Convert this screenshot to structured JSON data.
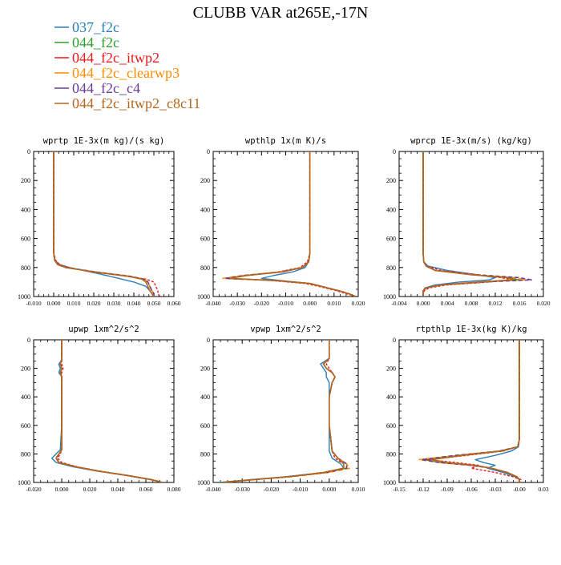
{
  "title": "CLUBB VAR at265E,-17N",
  "legend": [
    {
      "label": "037_f2c",
      "color": "#2a7fb8"
    },
    {
      "label": "044_f2c",
      "color": "#2ca02c"
    },
    {
      "label": "044_f2c_itwp2",
      "color": "#e41a1c"
    },
    {
      "label": "044_f2c_clearwp3",
      "color": "#ff8c00"
    },
    {
      "label": "044_f2c_c4",
      "color": "#6a3d9a"
    },
    {
      "label": "044_f2c_itwp2_c8c11",
      "color": "#b5651d"
    }
  ],
  "chart_data": [
    {
      "type": "line",
      "title": "wprtp  1E-3x(m kg)/(s kg)",
      "xlim": [
        -0.01,
        0.06
      ],
      "xticks": [
        "-0.010",
        "0.000",
        "0.010",
        "0.020",
        "0.030",
        "0.040",
        "0.050",
        "0.060"
      ],
      "ylim": [
        1000,
        0
      ],
      "yticks": [
        "0",
        "200",
        "400",
        "600",
        "800",
        "1000"
      ],
      "y": [
        0,
        100,
        300,
        500,
        700,
        750,
        780,
        800,
        830,
        860,
        880,
        900,
        930,
        960,
        980,
        1000
      ],
      "series": [
        {
          "name": "037_f2c",
          "values": [
            0,
            0,
            0,
            0,
            0,
            0.0005,
            0.003,
            0.008,
            0.018,
            0.028,
            0.034,
            0.04,
            0.046,
            0.048,
            0.049,
            0.05
          ]
        },
        {
          "name": "044_f2c",
          "values": [
            0,
            0,
            0,
            0,
            0,
            0.0005,
            0.002,
            0.006,
            0.02,
            0.038,
            0.045,
            0.047,
            0.048,
            0.049,
            0.05,
            0.05
          ]
        },
        {
          "name": "044_f2c_itwp2",
          "values": [
            0,
            0,
            0,
            0,
            0,
            0.001,
            0.003,
            0.007,
            0.019,
            0.036,
            0.046,
            0.05,
            0.051,
            0.052,
            0.052,
            0.053
          ]
        },
        {
          "name": "044_f2c_clearwp3",
          "values": [
            0,
            0,
            0,
            0,
            0,
            0.0005,
            0.002,
            0.006,
            0.02,
            0.037,
            0.045,
            0.047,
            0.048,
            0.049,
            0.05,
            0.05
          ]
        },
        {
          "name": "044_f2c_c4",
          "values": [
            0,
            0,
            0,
            0,
            0,
            0.0005,
            0.002,
            0.006,
            0.021,
            0.038,
            0.045,
            0.047,
            0.048,
            0.049,
            0.05,
            0.05
          ]
        },
        {
          "name": "044_f2c_itwp2_c8c11",
          "values": [
            0,
            0,
            0,
            0,
            0,
            0.0005,
            0.002,
            0.006,
            0.02,
            0.037,
            0.044,
            0.046,
            0.047,
            0.048,
            0.049,
            0.05
          ]
        }
      ]
    },
    {
      "type": "line",
      "title": "wpthlp  1x(m K)/s",
      "xlim": [
        -0.04,
        0.02
      ],
      "xticks": [
        "-0.040",
        "-0.030",
        "-0.020",
        "-0.010",
        "0.000",
        "0.010",
        "0.020"
      ],
      "ylim": [
        1000,
        0
      ],
      "yticks": [
        "0",
        "200",
        "400",
        "600",
        "800",
        "1000"
      ],
      "y": [
        0,
        100,
        300,
        500,
        700,
        760,
        800,
        830,
        855,
        875,
        890,
        910,
        935,
        960,
        980,
        1000
      ],
      "series": [
        {
          "name": "037_f2c",
          "values": [
            0,
            0,
            0,
            0,
            0,
            -0.0005,
            -0.002,
            -0.007,
            -0.015,
            -0.02,
            -0.012,
            0.0,
            0.006,
            0.012,
            0.016,
            0.019
          ]
        },
        {
          "name": "044_f2c",
          "values": [
            0,
            0,
            0,
            0,
            0,
            -0.0005,
            -0.003,
            -0.012,
            -0.026,
            -0.034,
            -0.014,
            0.0,
            0.006,
            0.012,
            0.016,
            0.019
          ]
        },
        {
          "name": "044_f2c_itwp2",
          "values": [
            0,
            0,
            0,
            0,
            0,
            -0.001,
            -0.004,
            -0.013,
            -0.027,
            -0.034,
            -0.016,
            -0.002,
            0.005,
            0.011,
            0.015,
            0.019
          ]
        },
        {
          "name": "044_f2c_clearwp3",
          "values": [
            0,
            0,
            0,
            0,
            0,
            -0.0005,
            -0.003,
            -0.012,
            -0.028,
            -0.036,
            -0.015,
            0.0,
            0.006,
            0.012,
            0.016,
            0.019
          ]
        },
        {
          "name": "044_f2c_c4",
          "values": [
            0,
            0,
            0,
            0,
            0,
            -0.0005,
            -0.003,
            -0.012,
            -0.027,
            -0.035,
            -0.014,
            0.0,
            0.006,
            0.012,
            0.016,
            0.019
          ]
        },
        {
          "name": "044_f2c_itwp2_c8c11",
          "values": [
            0,
            0,
            0,
            0,
            0,
            -0.0005,
            -0.003,
            -0.011,
            -0.026,
            -0.033,
            -0.014,
            0.0,
            0.006,
            0.012,
            0.016,
            0.019
          ]
        }
      ]
    },
    {
      "type": "line",
      "title": "wprcp  1E-3x(m/s) (kg/kg)",
      "xlim": [
        -0.004,
        0.02
      ],
      "xticks": [
        "-0.004",
        "0.000",
        "0.004",
        "0.008",
        "0.012",
        "0.016",
        "0.020"
      ],
      "ylim": [
        1000,
        0
      ],
      "yticks": [
        "0",
        "200",
        "400",
        "600",
        "800",
        "1000"
      ],
      "y": [
        0,
        100,
        300,
        500,
        700,
        760,
        790,
        820,
        850,
        870,
        885,
        900,
        920,
        940,
        960,
        980,
        1000
      ],
      "series": [
        {
          "name": "037_f2c",
          "values": [
            0,
            0,
            0,
            0,
            0,
            0.0001,
            0.0008,
            0.004,
            0.009,
            0.012,
            0.011,
            0.006,
            0.002,
            0.0003,
            0,
            0,
            0
          ]
        },
        {
          "name": "044_f2c",
          "values": [
            0,
            0,
            0,
            0,
            0,
            0.0001,
            0.0005,
            0.002,
            0.008,
            0.014,
            0.016,
            0.01,
            0.003,
            0.0005,
            0,
            0,
            0
          ]
        },
        {
          "name": "044_f2c_itwp2",
          "values": [
            0,
            0,
            0,
            0,
            0,
            0.0001,
            0.0006,
            0.003,
            0.009,
            0.013,
            0.015,
            0.011,
            0.004,
            0.001,
            0.0002,
            0,
            0
          ]
        },
        {
          "name": "044_f2c_clearwp3",
          "values": [
            0,
            0,
            0,
            0,
            0,
            0.0001,
            0.0005,
            0.002,
            0.009,
            0.015,
            0.017,
            0.01,
            0.003,
            0.0005,
            0,
            0,
            0
          ]
        },
        {
          "name": "044_f2c_c4",
          "values": [
            0,
            0,
            0,
            0,
            0,
            0.0001,
            0.0005,
            0.002,
            0.009,
            0.016,
            0.018,
            0.01,
            0.003,
            0.0005,
            0,
            0,
            0
          ]
        },
        {
          "name": "044_f2c_itwp2_c8c11",
          "values": [
            0,
            0,
            0,
            0,
            0,
            0.0001,
            0.0005,
            0.002,
            0.008,
            0.014,
            0.015,
            0.009,
            0.003,
            0.0005,
            0,
            0,
            0
          ]
        }
      ]
    },
    {
      "type": "line",
      "title": "upwp  1xm^2/s^2",
      "xlim": [
        -0.02,
        0.08
      ],
      "xticks": [
        "-0.020",
        "0.000",
        "0.020",
        "0.040",
        "0.060",
        "0.080"
      ],
      "ylim": [
        1000,
        0
      ],
      "yticks": [
        "0",
        "200",
        "400",
        "600",
        "800",
        "1000"
      ],
      "y": [
        0,
        140,
        170,
        200,
        230,
        260,
        400,
        600,
        770,
        800,
        830,
        860,
        890,
        920,
        950,
        980,
        1000
      ],
      "series": [
        {
          "name": "037_f2c",
          "values": [
            0,
            0,
            -0.002,
            -0.001,
            -0.002,
            0,
            0,
            0,
            -0.001,
            -0.004,
            -0.007,
            -0.004,
            0.008,
            0.025,
            0.045,
            0.063,
            0.072
          ]
        },
        {
          "name": "044_f2c",
          "values": [
            0,
            0,
            -0.001,
            0.0,
            -0.001,
            0,
            0,
            0,
            0,
            -0.002,
            -0.004,
            -0.002,
            0.01,
            0.026,
            0.046,
            0.064,
            0.072
          ]
        },
        {
          "name": "044_f2c_itwp2",
          "values": [
            0,
            0,
            0.0,
            0.001,
            0.0,
            0,
            0,
            0,
            0,
            -0.001,
            -0.003,
            0.0,
            0.011,
            0.027,
            0.047,
            0.064,
            0.072
          ]
        },
        {
          "name": "044_f2c_clearwp3",
          "values": [
            0,
            0,
            -0.001,
            0.0,
            -0.001,
            0,
            0,
            0,
            0,
            -0.002,
            -0.004,
            -0.002,
            0.01,
            0.026,
            0.046,
            0.064,
            0.072
          ]
        },
        {
          "name": "044_f2c_c4",
          "values": [
            0,
            0,
            -0.001,
            0.0,
            -0.001,
            0,
            0,
            0,
            0,
            -0.002,
            -0.004,
            -0.002,
            0.01,
            0.026,
            0.046,
            0.064,
            0.072
          ]
        },
        {
          "name": "044_f2c_itwp2_c8c11",
          "values": [
            0,
            0,
            -0.001,
            0.0,
            -0.001,
            0,
            0,
            0,
            0,
            -0.002,
            -0.004,
            -0.002,
            0.01,
            0.026,
            0.046,
            0.064,
            0.072
          ]
        }
      ]
    },
    {
      "type": "line",
      "title": "vpwp  1xm^2/s^2",
      "xlim": [
        -0.04,
        0.01
      ],
      "xticks": [
        "-0.040",
        "-0.030",
        "-0.020",
        "-0.010",
        "0.000",
        "0.010"
      ],
      "ylim": [
        1000,
        0
      ],
      "yticks": [
        "0",
        "200",
        "400",
        "600",
        "800",
        "1000"
      ],
      "y": [
        0,
        130,
        170,
        200,
        230,
        260,
        300,
        400,
        600,
        780,
        830,
        870,
        900,
        930,
        960,
        980,
        1000
      ],
      "series": [
        {
          "name": "037_f2c",
          "values": [
            0,
            0,
            -0.003,
            -0.002,
            -0.001,
            -0.001,
            0,
            0,
            0,
            0,
            0.001,
            0.004,
            0.005,
            -0.002,
            -0.015,
            -0.027,
            -0.038
          ]
        },
        {
          "name": "044_f2c",
          "values": [
            0,
            0,
            -0.002,
            -0.001,
            0.001,
            0.002,
            0.001,
            0,
            0,
            0.001,
            0.003,
            0.006,
            0.006,
            -0.001,
            -0.014,
            -0.026,
            -0.037
          ]
        },
        {
          "name": "044_f2c_itwp2",
          "values": [
            0,
            0,
            -0.001,
            0.0,
            0.001,
            0.002,
            0.001,
            0,
            0,
            0.001,
            0.002,
            0.005,
            0.005,
            -0.002,
            -0.014,
            -0.026,
            -0.037
          ]
        },
        {
          "name": "044_f2c_clearwp3",
          "values": [
            0,
            0,
            -0.002,
            -0.001,
            0.001,
            0.002,
            0.001,
            0,
            0,
            0.001,
            0.003,
            0.006,
            0.007,
            0.0,
            -0.013,
            -0.026,
            -0.037
          ]
        },
        {
          "name": "044_f2c_c4",
          "values": [
            0,
            0,
            -0.002,
            -0.001,
            0.001,
            0.002,
            0.001,
            0,
            0,
            0.001,
            0.003,
            0.006,
            0.006,
            -0.001,
            -0.014,
            -0.026,
            -0.037
          ]
        },
        {
          "name": "044_f2c_itwp2_c8c11",
          "values": [
            0,
            0,
            -0.002,
            -0.001,
            0.001,
            0.002,
            0.001,
            0,
            0,
            0.001,
            0.003,
            0.005,
            0.005,
            -0.002,
            -0.014,
            -0.026,
            -0.037
          ]
        }
      ]
    },
    {
      "type": "line",
      "title": "rtpthlp  1E-3x(kg K)/kg",
      "xlim": [
        -0.15,
        0.03
      ],
      "xticks": [
        "-0.15",
        "-0.12",
        "-0.09",
        "-0.06",
        "-0.03",
        "-0.00",
        "0.03"
      ],
      "ylim": [
        1000,
        0
      ],
      "yticks": [
        "0",
        "200",
        "400",
        "600",
        "800",
        "1000"
      ],
      "y": [
        0,
        100,
        300,
        500,
        700,
        750,
        780,
        810,
        840,
        860,
        880,
        900,
        930,
        960,
        980,
        1000
      ],
      "series": [
        {
          "name": "037_f2c",
          "values": [
            0,
            0,
            0,
            0,
            0,
            -0.001,
            -0.01,
            -0.03,
            -0.055,
            -0.045,
            -0.03,
            -0.04,
            -0.02,
            -0.005,
            0,
            0
          ]
        },
        {
          "name": "044_f2c",
          "values": [
            0,
            0,
            0,
            0,
            0,
            -0.002,
            -0.025,
            -0.075,
            -0.118,
            -0.1,
            -0.06,
            -0.035,
            -0.015,
            -0.003,
            0,
            0
          ]
        },
        {
          "name": "044_f2c_itwp2",
          "values": [
            0,
            0,
            0,
            0,
            0,
            -0.002,
            -0.02,
            -0.065,
            -0.115,
            -0.08,
            -0.05,
            -0.06,
            -0.03,
            -0.008,
            0.002,
            0
          ]
        },
        {
          "name": "044_f2c_clearwp3",
          "values": [
            0,
            0,
            0,
            0,
            0,
            -0.002,
            -0.025,
            -0.08,
            -0.125,
            -0.1,
            -0.06,
            -0.035,
            -0.015,
            -0.003,
            0,
            0
          ]
        },
        {
          "name": "044_f2c_c4",
          "values": [
            0,
            0,
            0,
            0,
            0,
            -0.002,
            -0.025,
            -0.078,
            -0.122,
            -0.1,
            -0.06,
            -0.035,
            -0.015,
            -0.003,
            0,
            0
          ]
        },
        {
          "name": "044_f2c_itwp2_c8c11",
          "values": [
            0,
            0,
            0,
            0,
            0,
            -0.002,
            -0.022,
            -0.07,
            -0.11,
            -0.09,
            -0.055,
            -0.035,
            -0.015,
            -0.003,
            0,
            0
          ]
        }
      ]
    }
  ]
}
